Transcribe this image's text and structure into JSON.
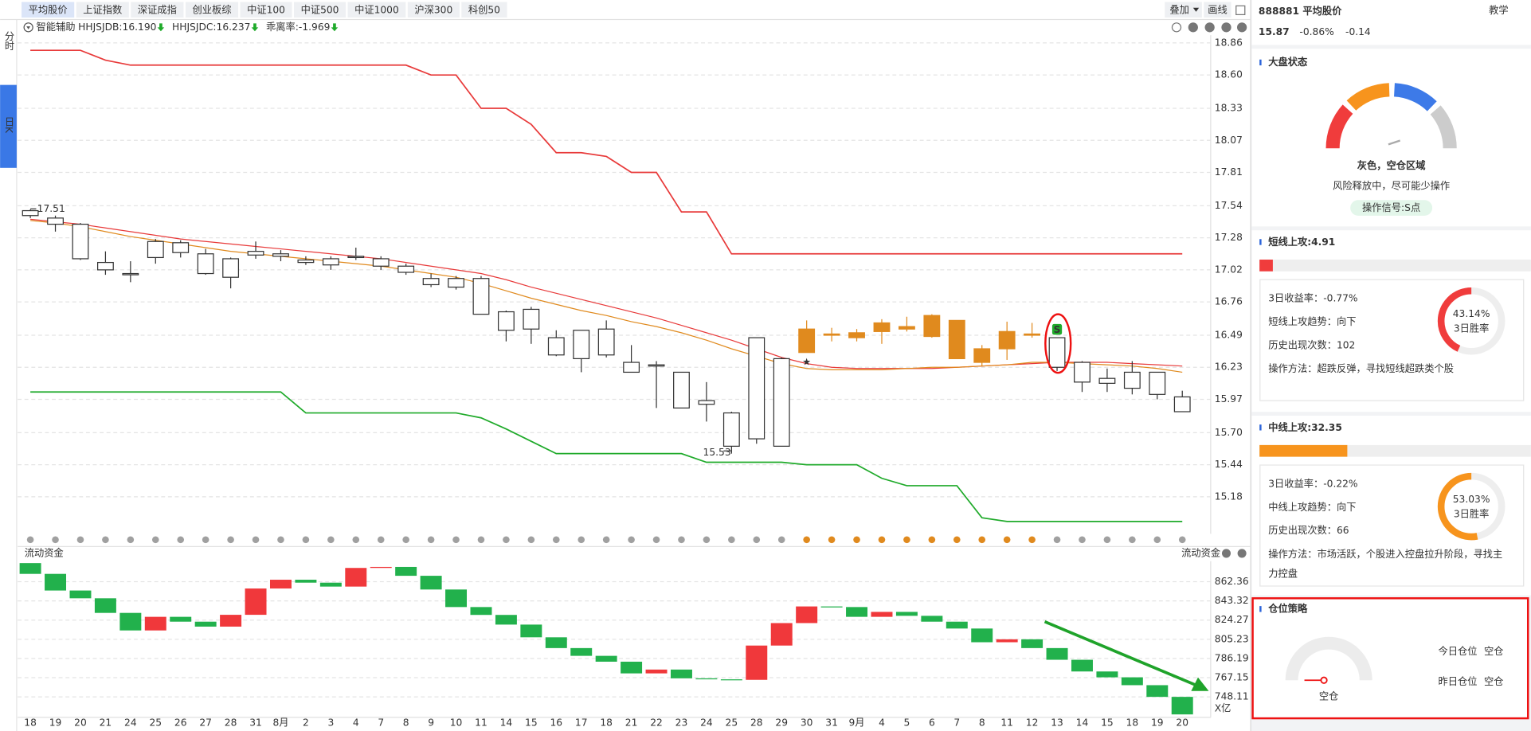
{
  "tabs": [
    "平均股价",
    "上证指数",
    "深证成指",
    "创业板综",
    "中证100",
    "中证500",
    "中证1000",
    "沪深300",
    "科创50"
  ],
  "toolbar": {
    "overlay": "叠加",
    "draw": "画线"
  },
  "side_tabs": [
    "分时",
    "日K"
  ],
  "indicators": {
    "assist": "智能辅助",
    "items": [
      {
        "text": "HHJSJDB:16.190",
        "color": "#e08a1e"
      },
      {
        "text": "HHJSJDC:16.237",
        "color": "#e83a3a"
      },
      {
        "text": "乖离率:-1.969",
        "color": "#e08a1e"
      }
    ]
  },
  "chart_data": [
    {
      "type": "candlestick",
      "open": [
        17.46,
        17.44,
        17.39,
        17.08,
        16.99,
        17.12,
        17.16,
        17.15,
        16.96,
        17.14,
        17.15,
        17.1,
        17.06,
        17.13,
        17.11,
        17.05,
        16.95,
        16.88,
        16.95,
        16.68,
        16.54,
        16.47,
        16.3,
        16.33,
        16.27,
        16.25,
        16.19,
        15.96,
        15.59,
        15.65,
        15.59,
        16.35,
        16.5,
        16.47,
        16.52,
        16.54,
        16.65,
        16.61,
        16.27,
        16.38,
        16.5,
        16.47,
        16.27,
        16.1,
        16.06,
        16.19,
        15.99
      ],
      "high": [
        17.51,
        17.46,
        17.4,
        17.17,
        17.09,
        17.27,
        17.26,
        17.19,
        17.12,
        17.25,
        17.18,
        17.13,
        17.13,
        17.2,
        17.13,
        17.07,
        16.99,
        16.97,
        16.97,
        16.69,
        16.72,
        16.53,
        16.53,
        16.61,
        16.41,
        16.28,
        16.19,
        16.11,
        15.87,
        16.47,
        16.31,
        16.61,
        16.55,
        16.54,
        16.62,
        16.64,
        16.66,
        16.61,
        16.41,
        16.6,
        16.59,
        16.47,
        16.28,
        16.22,
        16.28,
        16.19,
        16.04
      ],
      "low": [
        17.44,
        17.33,
        17.1,
        16.98,
        16.92,
        17.07,
        17.12,
        16.98,
        16.87,
        17.11,
        17.09,
        17.06,
        17.02,
        17.1,
        17.02,
        16.98,
        16.88,
        16.86,
        16.66,
        16.44,
        16.42,
        16.32,
        16.19,
        16.31,
        16.19,
        15.9,
        15.9,
        15.79,
        15.53,
        15.61,
        15.59,
        16.35,
        16.44,
        16.44,
        16.42,
        16.52,
        16.47,
        16.3,
        16.24,
        16.29,
        16.47,
        16.2,
        16.03,
        16.03,
        16.01,
        15.97,
        15.87
      ],
      "close": [
        17.5,
        17.39,
        17.11,
        17.02,
        16.98,
        17.25,
        17.24,
        16.99,
        17.11,
        17.17,
        17.13,
        17.08,
        17.11,
        17.12,
        17.05,
        17.0,
        16.9,
        16.95,
        16.66,
        16.53,
        16.7,
        16.33,
        16.53,
        16.54,
        16.19,
        16.24,
        15.9,
        15.93,
        15.86,
        16.47,
        16.3,
        16.54,
        16.49,
        16.51,
        16.59,
        16.56,
        16.48,
        16.3,
        16.38,
        16.52,
        16.49,
        16.23,
        16.11,
        16.14,
        16.19,
        16.01,
        15.87
      ],
      "fills": [
        "#ffffff",
        "#ffffff",
        "#ffffff",
        "#ffffff",
        "#ffffff",
        "#ffffff",
        "#ffffff",
        "#ffffff",
        "#ffffff",
        "#ffffff",
        "#ffffff",
        "#ffffff",
        "#ffffff",
        "#ffffff",
        "#ffffff",
        "#ffffff",
        "#ffffff",
        "#ffffff",
        "#ffffff",
        "#ffffff",
        "#ffffff",
        "#ffffff",
        "#ffffff",
        "#ffffff",
        "#ffffff",
        "#ffffff",
        "#ffffff",
        "#ffffff",
        "#ffffff",
        "#ffffff",
        "#ffffff",
        "#e08a1e",
        "#e08a1e",
        "#e08a1e",
        "#e08a1e",
        "#e08a1e",
        "#e08a1e",
        "#e08a1e",
        "#e08a1e",
        "#e08a1e",
        "#e08a1e",
        "#ffffff",
        "#ffffff",
        "#ffffff",
        "#ffffff",
        "#ffffff",
        "#ffffff"
      ],
      "border_color": "#333333",
      "lines": [
        {
          "color": "#e83a3a",
          "values": [
            18.8,
            18.8,
            18.8,
            18.72,
            18.68,
            18.68,
            18.68,
            18.68,
            18.68,
            18.68,
            18.68,
            18.68,
            18.68,
            18.68,
            18.68,
            18.68,
            18.6,
            18.6,
            18.33,
            18.33,
            18.2,
            17.97,
            17.97,
            17.94,
            17.81,
            17.81,
            17.49,
            17.49,
            17.15,
            17.15,
            17.15,
            17.15,
            17.15,
            17.15,
            17.15,
            17.15,
            17.15,
            17.15,
            17.15,
            17.15,
            17.15,
            17.15,
            17.15,
            17.15,
            17.15,
            17.15,
            17.15
          ]
        },
        {
          "color": "#1faa2a",
          "values": [
            16.03,
            16.03,
            16.03,
            16.03,
            16.03,
            16.03,
            16.03,
            16.03,
            16.03,
            16.03,
            16.03,
            15.86,
            15.86,
            15.86,
            15.86,
            15.86,
            15.86,
            15.86,
            15.82,
            15.73,
            15.63,
            15.53,
            15.53,
            15.53,
            15.53,
            15.53,
            15.53,
            15.46,
            15.46,
            15.46,
            15.46,
            15.44,
            15.44,
            15.44,
            15.33,
            15.27,
            15.27,
            15.27,
            15.01,
            14.98,
            14.98,
            14.98,
            14.98,
            14.98,
            14.98,
            14.98,
            14.98
          ]
        },
        {
          "color": "#e83a3a",
          "values": [
            17.43,
            17.41,
            17.39,
            17.36,
            17.33,
            17.3,
            17.27,
            17.25,
            17.23,
            17.21,
            17.19,
            17.17,
            17.15,
            17.13,
            17.11,
            17.08,
            17.05,
            17.02,
            16.99,
            16.94,
            16.88,
            16.83,
            16.78,
            16.73,
            16.68,
            16.63,
            16.57,
            16.51,
            16.45,
            16.38,
            16.31,
            16.26,
            16.23,
            16.22,
            16.22,
            16.22,
            16.22,
            16.23,
            16.24,
            16.25,
            16.26,
            16.27,
            16.27,
            16.27,
            16.26,
            16.25,
            16.24
          ]
        },
        {
          "color": "#e08a1e",
          "values": [
            17.42,
            17.4,
            17.37,
            17.33,
            17.29,
            17.26,
            17.23,
            17.2,
            17.17,
            17.15,
            17.13,
            17.11,
            17.09,
            17.07,
            17.05,
            17.02,
            16.99,
            16.96,
            16.91,
            16.85,
            16.79,
            16.74,
            16.69,
            16.65,
            16.6,
            16.56,
            16.51,
            16.45,
            16.38,
            16.32,
            16.26,
            16.22,
            16.21,
            16.21,
            16.21,
            16.22,
            16.23,
            16.23,
            16.24,
            16.25,
            16.27,
            16.27,
            16.26,
            16.25,
            16.24,
            16.22,
            16.19
          ]
        }
      ],
      "signals": [
        null,
        null,
        null,
        null,
        null,
        null,
        null,
        null,
        null,
        null,
        null,
        null,
        null,
        null,
        null,
        null,
        null,
        null,
        null,
        null,
        null,
        null,
        null,
        null,
        null,
        null,
        null,
        null,
        null,
        null,
        null,
        "★",
        null,
        null,
        null,
        null,
        null,
        null,
        null,
        null,
        null,
        "S",
        null,
        null,
        null,
        null,
        null
      ],
      "ylim": [
        14.9,
        18.92
      ],
      "yticks": [
        18.86,
        {
          "value": 18.6,
          "label": "18.60"
        },
        18.33,
        18.07,
        17.81,
        17.54,
        17.28,
        17.02,
        16.76,
        16.49,
        16.23,
        15.97,
        {
          "value": 15.7,
          "label": "15.70"
        },
        15.44,
        15.18
      ],
      "grid": true
    },
    {
      "type": "floating-bar",
      "title": "流动资金",
      "categories": [
        "18",
        "19",
        "20",
        "21",
        "24",
        "25",
        "26",
        "27",
        "28",
        "31",
        "8月",
        "2",
        "3",
        "4",
        "7",
        "8",
        "9",
        "10",
        "11",
        "14",
        "15",
        "16",
        "17",
        "18",
        "21",
        "22",
        "23",
        "24",
        "25",
        "28",
        "29",
        "30",
        "31",
        "9月",
        "4",
        "5",
        "6",
        "7",
        "8",
        "11",
        "12",
        "13",
        "14",
        "15",
        "18",
        "19",
        "20"
      ],
      "open": [
        880.8,
        870.1,
        853.6,
        845.9,
        831.4,
        814.0,
        827.5,
        822.7,
        817.8,
        829.5,
        855.6,
        864.3,
        861.4,
        857.5,
        876.0,
        877.0,
        868.2,
        854.6,
        837.2,
        829.4,
        819.8,
        807.2,
        796.5,
        788.8,
        783.0,
        771.4,
        775.2,
        766.5,
        765.5,
        765.0,
        799.0,
        821.3,
        837.8,
        837.2,
        827.5,
        832.4,
        828.5,
        822.7,
        815.9,
        802.3,
        805.2,
        796.5,
        784.9,
        773.3,
        767.5,
        759.7,
        748.1
      ],
      "close": [
        870.1,
        853.6,
        845.9,
        831.4,
        814.0,
        827.5,
        822.7,
        817.8,
        829.5,
        855.6,
        864.3,
        861.4,
        857.5,
        876.0,
        877.0,
        868.2,
        854.6,
        837.2,
        829.4,
        819.8,
        807.2,
        796.5,
        788.8,
        783.0,
        771.4,
        775.2,
        766.5,
        765.5,
        765.0,
        799.0,
        821.3,
        837.8,
        837.2,
        827.5,
        832.4,
        828.5,
        822.7,
        815.9,
        802.3,
        805.2,
        796.5,
        784.9,
        773.3,
        767.5,
        759.7,
        748.1,
        730.7
      ],
      "up_color": "#f0383b",
      "down_color": "#22b14c",
      "unit": "X亿",
      "ylim": [
        727.8,
        882.7
      ],
      "yticks": [
        862.36,
        843.32,
        824.27,
        805.23,
        786.19,
        767.15,
        748.11
      ],
      "grid": true
    }
  ],
  "panel": {
    "code_name": "888881 平均股价",
    "tutorial": "教学",
    "price": "15.87",
    "change_pct": "-0.86%",
    "change": "-0.14",
    "market": {
      "title": "大盘状态",
      "status": "灰色，空仓区域",
      "desc": "风险释放中，尽可能少操作",
      "signal": "操作信号:S点"
    },
    "cards": [
      {
        "title": "短线上攻:",
        "score": 4.91,
        "color": "#f03c3c",
        "rows": [
          "3日收益率：-0.77%",
          "短线上攻趋势：向下",
          "历史出现次数：102",
          "操作方法：超跌反弹，寻找短线超跌类个股"
        ],
        "win_rate": 43.14,
        "win_rate_label": "43.14%",
        "win_rate_caption": "3日胜率"
      },
      {
        "title": "中线上攻:",
        "score": 32.35,
        "color": "#f7941d",
        "rows": [
          "3日收益率：-0.22%",
          "中线上攻趋势：向下",
          "历史出现次数：66",
          "操作方法：市场活跃，个股进入控盘拉升阶段，寻找主力控盘"
        ],
        "win_rate": 53.03,
        "win_rate_label": "53.03%",
        "win_rate_caption": "3日胜率"
      }
    ],
    "position": {
      "title": "仓位策略",
      "gauge_label": "空仓",
      "today": "今日仓位",
      "today_value": "空仓",
      "yesterday": "昨日仓位",
      "yesterday_value": "空仓"
    }
  }
}
